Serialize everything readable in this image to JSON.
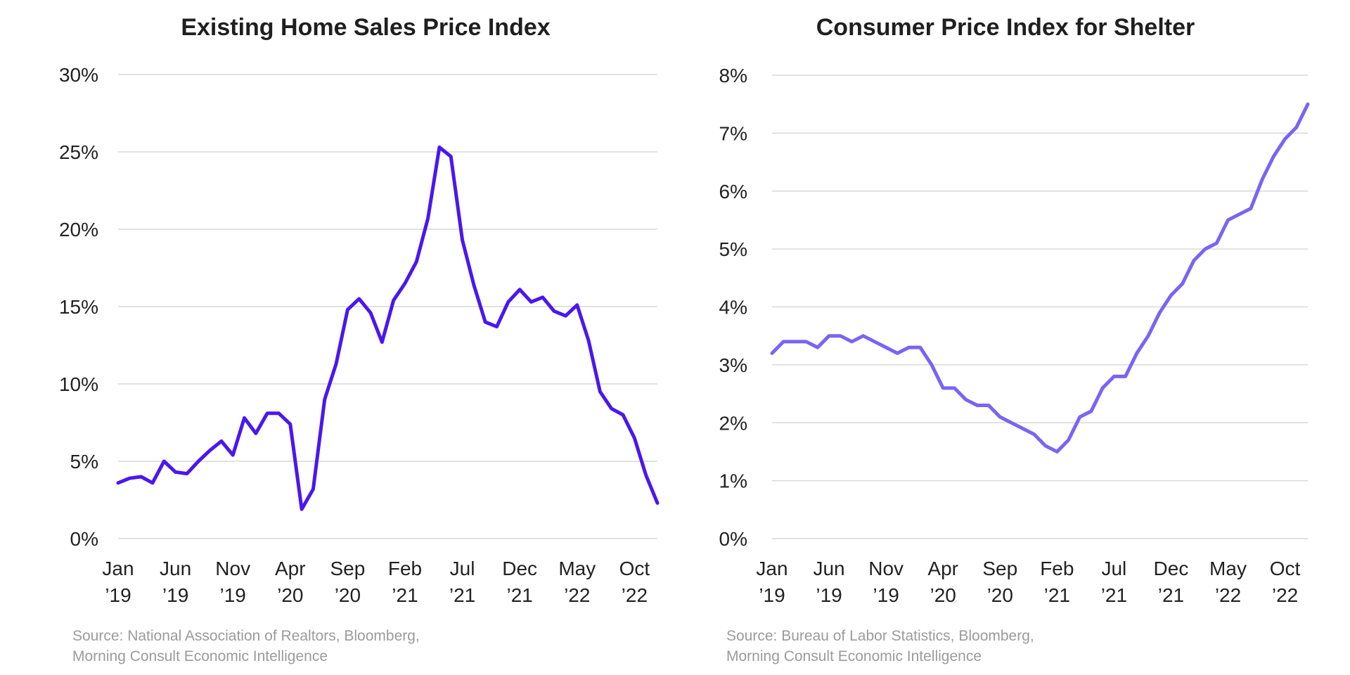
{
  "chart_data": [
    {
      "type": "line",
      "title": "Existing Home Sales Price Index",
      "xlabel": "",
      "ylabel": "",
      "ylim": [
        0,
        30
      ],
      "yticks": [
        "0%",
        "5%",
        "10%",
        "15%",
        "20%",
        "25%",
        "30%"
      ],
      "xtick_labels": [
        {
          "month": "Jan",
          "year": "’19"
        },
        {
          "month": "Jun",
          "year": "’19"
        },
        {
          "month": "Nov",
          "year": "’19"
        },
        {
          "month": "Apr",
          "year": "’20"
        },
        {
          "month": "Sep",
          "year": "’20"
        },
        {
          "month": "Feb",
          "year": "’21"
        },
        {
          "month": "Jul",
          "year": "’21"
        },
        {
          "month": "Dec",
          "year": "’21"
        },
        {
          "month": "May",
          "year": "’22"
        },
        {
          "month": "Oct",
          "year": "’22"
        }
      ],
      "x": [
        "2019-01",
        "2019-02",
        "2019-03",
        "2019-04",
        "2019-05",
        "2019-06",
        "2019-07",
        "2019-08",
        "2019-09",
        "2019-10",
        "2019-11",
        "2019-12",
        "2020-01",
        "2020-02",
        "2020-03",
        "2020-04",
        "2020-05",
        "2020-06",
        "2020-07",
        "2020-08",
        "2020-09",
        "2020-10",
        "2020-11",
        "2020-12",
        "2021-01",
        "2021-02",
        "2021-03",
        "2021-04",
        "2021-05",
        "2021-06",
        "2021-07",
        "2021-08",
        "2021-09",
        "2021-10",
        "2021-11",
        "2021-12",
        "2022-01",
        "2022-02",
        "2022-03",
        "2022-04",
        "2022-05",
        "2022-06",
        "2022-07",
        "2022-08",
        "2022-09",
        "2022-10",
        "2022-11",
        "2022-12"
      ],
      "series": [
        {
          "color": "#4a17f0",
          "values": [
            3.6,
            3.9,
            4.0,
            3.6,
            5.0,
            4.3,
            4.2,
            5.0,
            5.7,
            6.3,
            5.4,
            7.8,
            6.8,
            8.1,
            8.1,
            7.4,
            1.9,
            3.2,
            9.0,
            11.3,
            14.8,
            15.5,
            14.6,
            12.7,
            15.4,
            16.5,
            17.9,
            20.7,
            25.3,
            24.7,
            19.3,
            16.4,
            14.0,
            13.7,
            15.3,
            16.1,
            15.3,
            15.6,
            14.7,
            14.4,
            15.1,
            12.8,
            9.5,
            8.4,
            8.0,
            6.5,
            4.1,
            2.3
          ]
        }
      ],
      "source": [
        "Source: National Association of Realtors, Bloomberg,",
        "Morning Consult Economic Intelligence"
      ]
    },
    {
      "type": "line",
      "title": "Consumer Price Index for Shelter",
      "xlabel": "",
      "ylabel": "",
      "ylim": [
        0,
        8
      ],
      "yticks": [
        "0%",
        "1%",
        "2%",
        "3%",
        "4%",
        "5%",
        "6%",
        "7%",
        "8%"
      ],
      "xtick_labels": [
        {
          "month": "Jan",
          "year": "’19"
        },
        {
          "month": "Jun",
          "year": "’19"
        },
        {
          "month": "Nov",
          "year": "’19"
        },
        {
          "month": "Apr",
          "year": "’20"
        },
        {
          "month": "Sep",
          "year": "’20"
        },
        {
          "month": "Feb",
          "year": "’21"
        },
        {
          "month": "Jul",
          "year": "’21"
        },
        {
          "month": "Dec",
          "year": "’21"
        },
        {
          "month": "May",
          "year": "’22"
        },
        {
          "month": "Oct",
          "year": "’22"
        }
      ],
      "x": [
        "2019-01",
        "2019-02",
        "2019-03",
        "2019-04",
        "2019-05",
        "2019-06",
        "2019-07",
        "2019-08",
        "2019-09",
        "2019-10",
        "2019-11",
        "2019-12",
        "2020-01",
        "2020-02",
        "2020-03",
        "2020-04",
        "2020-05",
        "2020-06",
        "2020-07",
        "2020-08",
        "2020-09",
        "2020-10",
        "2020-11",
        "2020-12",
        "2021-01",
        "2021-02",
        "2021-03",
        "2021-04",
        "2021-05",
        "2021-06",
        "2021-07",
        "2021-08",
        "2021-09",
        "2021-10",
        "2021-11",
        "2021-12",
        "2022-01",
        "2022-02",
        "2022-03",
        "2022-04",
        "2022-05",
        "2022-06",
        "2022-07",
        "2022-08",
        "2022-09",
        "2022-10",
        "2022-11",
        "2022-12"
      ],
      "series": [
        {
          "color": "#7b63f5",
          "values": [
            3.2,
            3.4,
            3.4,
            3.4,
            3.3,
            3.5,
            3.5,
            3.4,
            3.5,
            3.4,
            3.3,
            3.2,
            3.3,
            3.3,
            3.0,
            2.6,
            2.6,
            2.4,
            2.3,
            2.3,
            2.1,
            2.0,
            1.9,
            1.8,
            1.6,
            1.5,
            1.7,
            2.1,
            2.2,
            2.6,
            2.8,
            2.8,
            3.2,
            3.5,
            3.9,
            4.2,
            4.4,
            4.8,
            5.0,
            5.1,
            5.5,
            5.6,
            5.7,
            6.2,
            6.6,
            6.9,
            7.1,
            7.5
          ]
        }
      ],
      "source": [
        "Source: Bureau of Labor Statistics, Bloomberg,",
        "Morning Consult Economic Intelligence"
      ]
    }
  ]
}
